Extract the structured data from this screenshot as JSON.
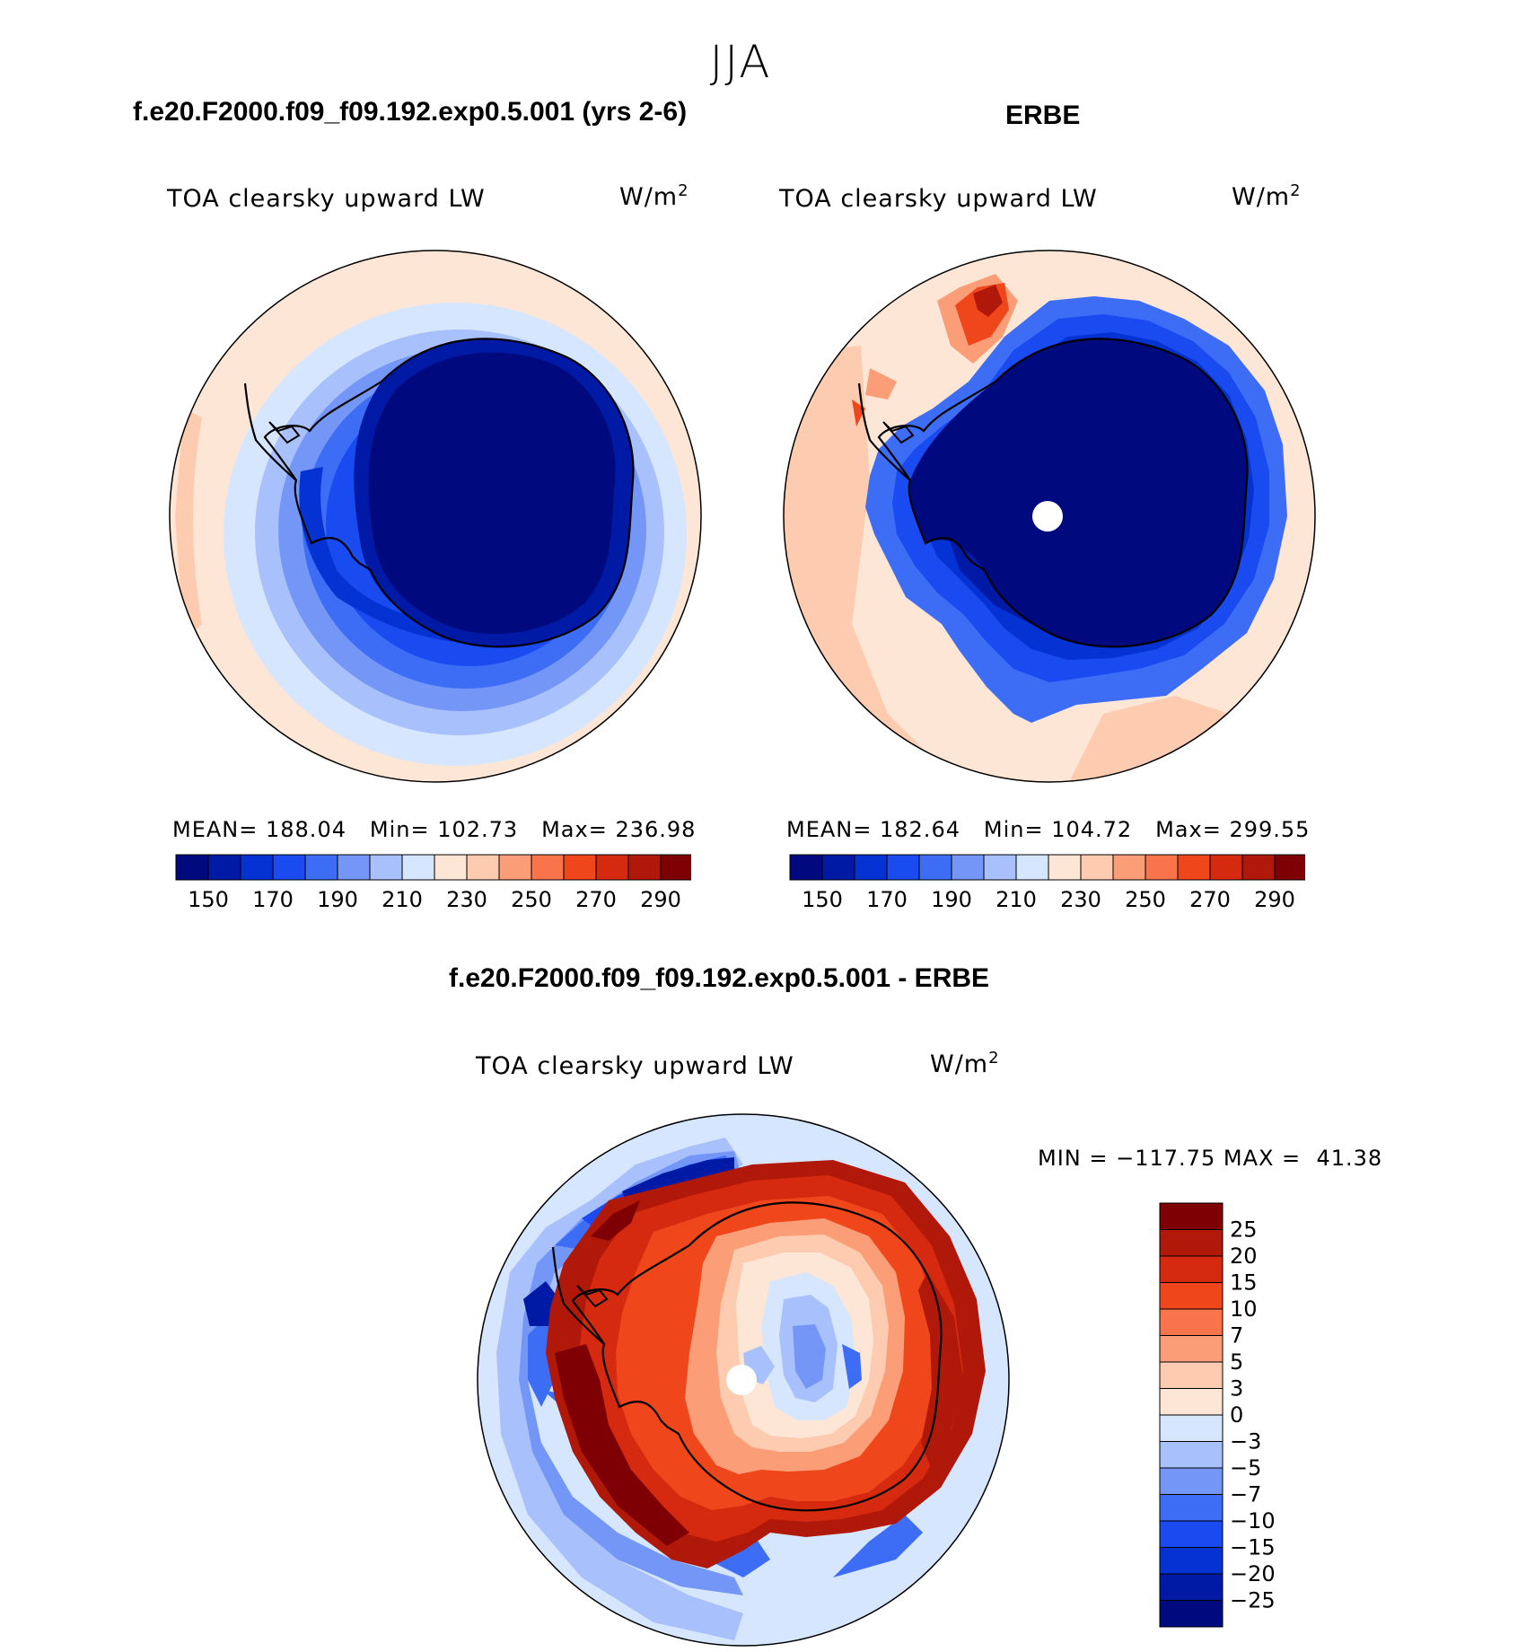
{
  "figure": {
    "season": "JJA",
    "titles": {
      "model": "f.e20.F2000.f09_f09.192.exp0.5.001 (yrs 2-6)",
      "obs": "ERBE",
      "diff": "f.e20.F2000.f09_f09.192.exp0.5.001 - ERBE"
    },
    "variable": "TOA clearsky upward LW",
    "units_base": "W/m",
    "units_exp": "2"
  },
  "panels": {
    "model": {
      "mean_label": "MEAN=",
      "mean": "188.04",
      "min_label": "Min=",
      "min": "102.73",
      "max_label": "Max=",
      "max": "236.98"
    },
    "obs": {
      "mean_label": "MEAN=",
      "mean": "182.64",
      "min_label": "Min=",
      "min": "104.72",
      "max_label": "Max=",
      "max": "299.55"
    },
    "diff": {
      "min_label": "MIN =",
      "min": "−117.75",
      "max_label": "MAX =",
      "max": "41.38"
    }
  },
  "colorbars": {
    "abs": {
      "colors": [
        "#000a7e",
        "#001aa6",
        "#0532d2",
        "#1a4bf0",
        "#3d6df5",
        "#7497f7",
        "#a8c0fb",
        "#d6e6fe",
        "#fde6d6",
        "#fdcbb0",
        "#fb9e78",
        "#f9744b",
        "#f0461c",
        "#d52a0f",
        "#b0180a",
        "#7e0004"
      ],
      "tick_labels": [
        "150",
        "170",
        "190",
        "210",
        "230",
        "250",
        "270",
        "290"
      ]
    },
    "diff": {
      "colors": [
        "#7e0004",
        "#b0180a",
        "#d52a0f",
        "#f0461c",
        "#f9744b",
        "#fb9e78",
        "#fdcbb0",
        "#fde6d6",
        "#d6e6fe",
        "#a8c0fb",
        "#7497f7",
        "#3d6df5",
        "#1a4bf0",
        "#0532d2",
        "#001aa6",
        "#000a7e"
      ],
      "tick_labels": [
        "25",
        "20",
        "15",
        "10",
        "7",
        "5",
        "3",
        "0",
        "−3",
        "−5",
        "−7",
        "−10",
        "−15",
        "−20",
        "−25"
      ]
    }
  }
}
